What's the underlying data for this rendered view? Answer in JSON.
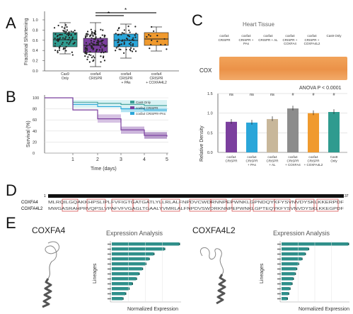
{
  "panels": {
    "a": "A",
    "b": "B",
    "c": "C",
    "d": "D",
    "e": "E"
  },
  "colors": {
    "teal": "#2f9b8f",
    "purple": "#7b3f9e",
    "blue": "#2aa6d9",
    "orange": "#f09a2e",
    "tan": "#c8b79a",
    "gray": "#8c8c8c"
  },
  "panelA": {
    "ylabel": "Fractional Shortening",
    "yticks": [
      "1.0",
      "0.8",
      "0.6",
      "0.4",
      "0.2",
      "0.0"
    ],
    "groups": [
      "Cas9 Only",
      "coxfa4 CRISPR",
      "coxfa4 CRISPR + PAs",
      "coxfa4 CRISPR + COXFA4L2"
    ],
    "sig": [
      "*",
      "*"
    ]
  },
  "panelB": {
    "ylabel": "Survival (%)",
    "xlabel": "Time (days)",
    "yticks": [
      "100",
      "80",
      "60",
      "40",
      "20",
      "0"
    ],
    "xticks": [
      "1",
      "2",
      "3",
      "4",
      "5"
    ],
    "legend": [
      "Cas9 Only",
      "coxfa4 CRISPR",
      "coxfa4 CRISPR+PAs"
    ]
  },
  "panelC": {
    "title": "Heart Tissue",
    "blot_label": "COX",
    "lanes": [
      "coxfa4 CRISPR",
      "coxfa4 CRISPR + PAs",
      "coxfa4 CRISPR + AL",
      "coxfa4 CRISPR + COXFA4",
      "coxfa4 CRISPR + COXFA4L2",
      "Cas9 Only"
    ],
    "anova": "ANOVA P < 0.0001",
    "sig": [
      "ns",
      "ns",
      "ns",
      "#",
      "#",
      "#"
    ],
    "ylabel": "Relative Density",
    "yticks": [
      "1.5",
      "1.0",
      "0.5",
      "0.0"
    ],
    "bar_values": [
      0.78,
      0.76,
      0.85,
      1.12,
      1.0,
      1.03
    ],
    "bar_labels": [
      "coxfa4 CRISPR",
      "coxfa4 CRISPR + PAs",
      "coxfa4 CRISPR + AL",
      "coxfa4 CRISPR + COXFA4",
      "coxfa4 CRISPR + COXFA4L2",
      "Cas9 Only"
    ]
  },
  "panelD": {
    "start": "1",
    "end": "37",
    "row1": "COXFA4",
    "row2": "COXFA4L2",
    "seq1": "MLRQILGQAKKHPSLIPLFVFIGTGATGATLYLLRLALFNPDVCWDRNNPEPWNKLGPNDQYKFYSVNVDYSKLKKERPDF",
    "seq2": "MWGASRAHPRVQPSLVPAFVFVGAGLTGAALYVMRLALFNPDVSWDRKNNPEPWNKLGPTEQYKFYSVNVDYSKLKKEGPDF"
  },
  "panelE": {
    "protein1": "COXFA4",
    "protein2": "COXFA4L2",
    "chart_title": "Expression Analysis",
    "ylabel": "Lineages",
    "xlabel": "Normalized Expression",
    "chart_data": [
      {
        "type": "bar",
        "title": "Expression Analysis",
        "ylabel": "Lineages",
        "xlabel": "Normalized Expression",
        "values": [
          1.0,
          0.78,
          0.62,
          0.55,
          0.5,
          0.45,
          0.4,
          0.36,
          0.3,
          0.25,
          0.2,
          0.16
        ]
      },
      {
        "type": "bar",
        "title": "Expression Analysis",
        "ylabel": "Lineages",
        "xlabel": "Normalized Expression",
        "values": [
          1.0,
          0.4,
          0.35,
          0.3,
          0.25,
          0.22,
          0.2,
          0.17,
          0.15,
          0.12,
          0.1,
          0.08
        ]
      }
    ]
  }
}
